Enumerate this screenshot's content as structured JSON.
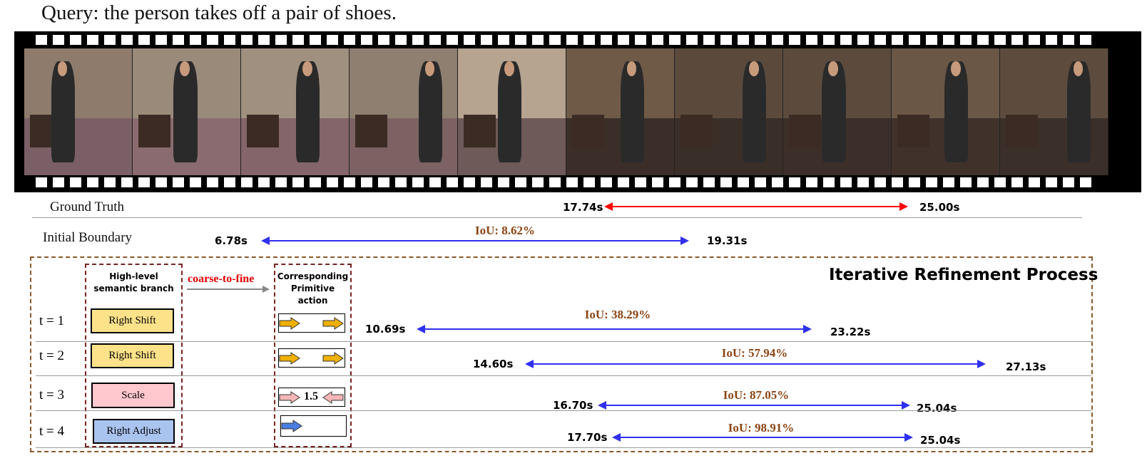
{
  "query": "Query: the person takes off a pair of shoes.",
  "ground_truth": {
    "label": "Ground Truth",
    "start": "17.74s",
    "end": "25.00s",
    "color": "#ff0000"
  },
  "initial_boundary": {
    "label": "Initial Boundary",
    "start": "6.78s",
    "end": "19.31s",
    "iou": "IoU: 8.62%",
    "color": "#3030f0"
  },
  "process": {
    "title": "Iterative Refinement Process",
    "semantic_header": [
      "High-level",
      "semantic branch"
    ],
    "primitive_header": [
      "Corresponding",
      "Primitive action"
    ],
    "coarse_to_fine": "coarse-to-fine",
    "steps": [
      {
        "t": "t = 1",
        "action": "Right Shift",
        "action_color": "#fde28a",
        "primitive": "right-shift",
        "start": "10.69s",
        "end": "23.22s",
        "iou": "IoU: 38.29%"
      },
      {
        "t": "t = 2",
        "action": "Right Shift",
        "action_color": "#fde28a",
        "primitive": "right-shift",
        "start": "14.60s",
        "end": "27.13s",
        "iou": "IoU: 57.94%"
      },
      {
        "t": "t = 3",
        "action": "Scale",
        "action_color": "#ffc7ce",
        "primitive": "scale",
        "scale_value": "1.5",
        "start": "16.70s",
        "end": "25.04s",
        "iou": "IoU: 87.05%"
      },
      {
        "t": "t = 4",
        "action": "Right Adjust",
        "action_color": "#aac4f0",
        "primitive": "right-adjust",
        "start": "17.70s",
        "end": "25.04s",
        "iou": "IoU: 98.91%"
      }
    ]
  },
  "icons": {
    "primitive_arrow": "right-arrow-icon",
    "scale_arrows": "inward-arrows-icon",
    "boundary": "double-arrow-icon"
  },
  "colors": {
    "arrow_blue": "#3030f0",
    "arrow_red": "#ff0000",
    "iou_brown": "#8b4513",
    "dashed_border": "#8b5a2b",
    "orange_arrow": "#f0b000",
    "pink_arrow": "#f4b6b6",
    "blue_arrow": "#4a7de0"
  }
}
